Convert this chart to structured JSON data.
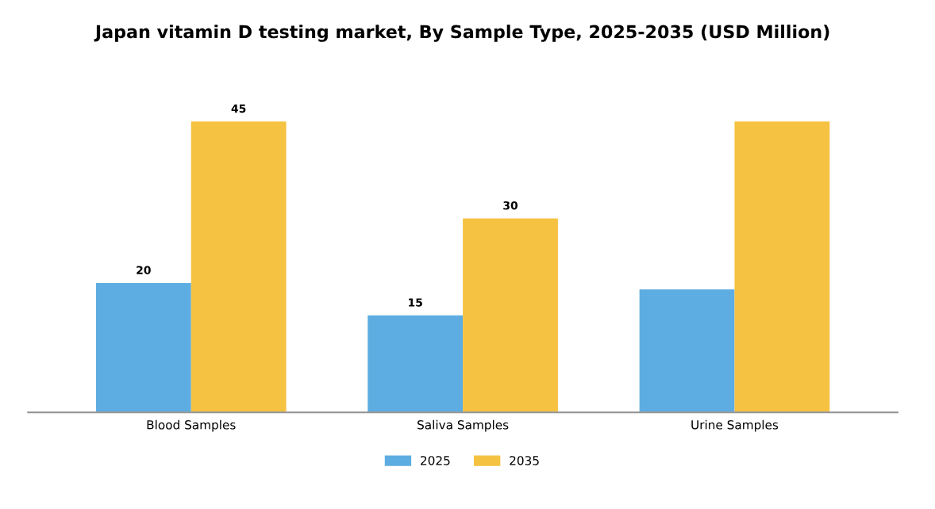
{
  "chart_data": {
    "type": "bar",
    "title": "Japan vitamin D testing market, By Sample Type, 2025-2035 (USD Million)",
    "categories": [
      "Blood Samples",
      "Saliva Samples",
      "Urine Samples"
    ],
    "series": [
      {
        "name": "2025",
        "color": "#5dade2",
        "values": [
          20,
          15,
          19
        ],
        "value_labels": [
          "20",
          "15",
          null
        ]
      },
      {
        "name": "2035",
        "color": "#f5c242",
        "values": [
          45,
          30,
          45
        ],
        "value_labels": [
          "45",
          "30",
          null
        ]
      }
    ],
    "legend": "bottom",
    "grid": false
  }
}
